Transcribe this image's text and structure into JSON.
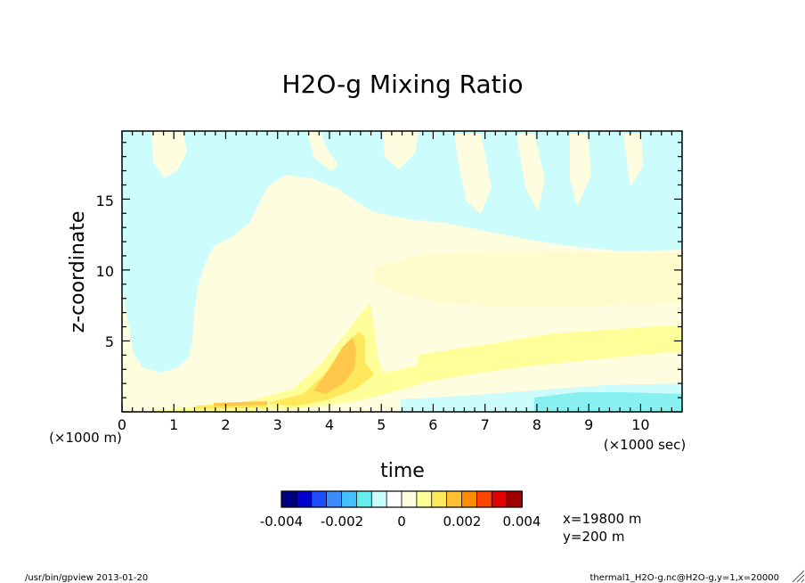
{
  "chart_data": {
    "type": "heatmap",
    "title": "H2O-g Mixing Ratio",
    "xlabel": "time",
    "ylabel": "z-coordinate",
    "x_unit": "(×1000 sec)",
    "y_unit": "(×1000 m)",
    "xlim": [
      0,
      10.8
    ],
    "ylim": [
      0,
      19.8
    ],
    "x_ticks": [
      0,
      1,
      2,
      3,
      4,
      5,
      6,
      7,
      8,
      9,
      10
    ],
    "y_ticks": [
      5,
      10,
      15
    ],
    "colorbar": {
      "colors": [
        "#000080",
        "#0000cd",
        "#1e4cff",
        "#3c8cff",
        "#44bfff",
        "#66eeee",
        "#c8fcfc",
        "#ffffff",
        "#fffde0",
        "#ffff99",
        "#ffe85c",
        "#ffc030",
        "#ff8c00",
        "#ff4500",
        "#e00000",
        "#a00000"
      ],
      "tick_labels": [
        "-0.004",
        "-0.002",
        "0",
        "0.002",
        "0.004"
      ],
      "tick_values": [
        -0.004,
        -0.002,
        0,
        0.002,
        0.004
      ],
      "range": [
        -0.004,
        0.004
      ]
    },
    "regions": [
      {
        "level": "slightly negative",
        "color": "#ccfcfc",
        "description_area": "upper levels above ~11, plus band near ground after t=6"
      },
      {
        "level": "near zero positive",
        "color": "#fffde0",
        "description_area": "most of the domain"
      },
      {
        "level": "0.001",
        "color": "#ffff99",
        "description_area": "plume from t=2 to t=4.8 below z=7, band z=2-5 after t=5"
      },
      {
        "level": "0.002",
        "color": "#ffe85c",
        "description_area": "core near t=3.5-4.5, z=1-5"
      },
      {
        "level": "0.0025",
        "color": "#ffc84c",
        "description_area": "innermost core near t=4, z=2-4"
      },
      {
        "level": "-0.001",
        "color": "#88f0f0",
        "description_area": "near ground after t=8"
      }
    ]
  },
  "annotations": {
    "location": [
      "x=19800  m",
      "y=200  m"
    ],
    "footer_left": "/usr/bin/gpview  2013-01-20",
    "footer_right": "thermal1_H2O-g.nc@H2O-g,y=1,x=20000"
  }
}
